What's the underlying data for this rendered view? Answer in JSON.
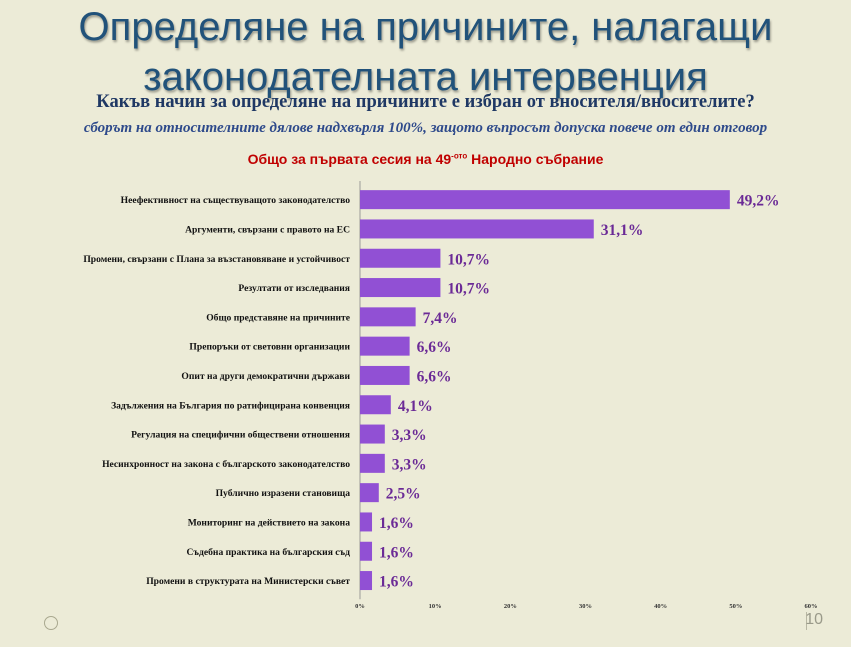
{
  "title_line1": "Определяне на причините, налагащи",
  "title_line2": "законодателната интервенция",
  "question": "Какъв начин за определяне на причините е избран от вносителя/вносителите?",
  "note": "сборът на относителните дялове надхвърля 100%, защото въпросът допуска повече от един отговор",
  "session_text_before": "Общо за първата сесия на 49",
  "session_sup": "-ото",
  "session_text_after": " Народно събрание",
  "page_number": "10",
  "bar_color": "#9150d4",
  "chart_data": {
    "type": "bar",
    "orientation": "horizontal",
    "categories": [
      "Неефективност на съществуващото законодателство",
      "Аргументи, свързани с правото на ЕС",
      "Промени, свързани с Плана за възстановяване и устойчивост",
      "Резултати от изследвания",
      "Общо представяне на причините",
      "Препоръки от световни организации",
      "Опит на други демократични държави",
      "Задължения на България по ратифицирана конвенция",
      "Регулация на специфични обществени отношения",
      "Несинхронност на закона с българското законодателство",
      "Публично изразени становища",
      "Мониторинг на действието на закона",
      "Съдебна практика на българския съд",
      "Промени в структурата на Министерски съвет"
    ],
    "values": [
      49.2,
      31.1,
      10.7,
      10.7,
      7.4,
      6.6,
      6.6,
      4.1,
      3.3,
      3.3,
      2.5,
      1.6,
      1.6,
      1.6
    ],
    "value_labels": [
      "49,2%",
      "31,1%",
      "10,7%",
      "10,7%",
      "7,4%",
      "6,6%",
      "6,6%",
      "4,1%",
      "3,3%",
      "3,3%",
      "2,5%",
      "1,6%",
      "1,6%",
      "1,6%"
    ],
    "x_ticks": [
      "0%",
      "10%",
      "20%",
      "30%",
      "40%",
      "50%",
      "60%"
    ],
    "xlim": [
      0,
      60
    ],
    "grid": false
  }
}
